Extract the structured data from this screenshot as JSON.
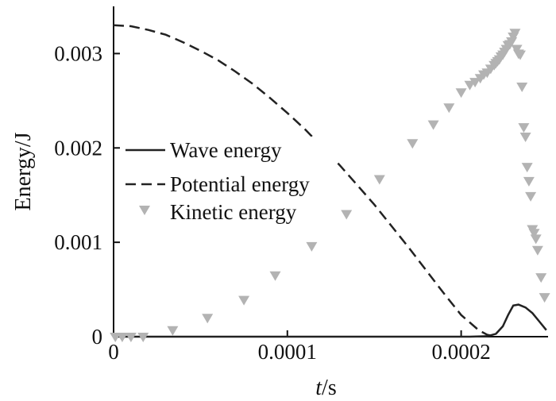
{
  "chart_data": {
    "type": "line",
    "xlabel_var": "t",
    "xlabel_unit": "/s",
    "ylabel": "Energy/J",
    "xlim": [
      0,
      0.00025
    ],
    "ylim": [
      0,
      0.0035
    ],
    "x_ticks": [
      {
        "value": 0,
        "label": "0"
      },
      {
        "value": 0.0001,
        "label": "0.0001"
      },
      {
        "value": 0.0002,
        "label": "0.0002"
      }
    ],
    "y_ticks": [
      {
        "value": 0,
        "label": "0"
      },
      {
        "value": 0.001,
        "label": "0.001"
      },
      {
        "value": 0.002,
        "label": "0.002"
      },
      {
        "value": 0.003,
        "label": "0.003"
      }
    ],
    "legend_position": "center-left",
    "series": [
      {
        "name": "Wave energy",
        "style": "solid",
        "color": "#222222",
        "x": [
          0,
          0.000205,
          0.000215,
          0.00022,
          0.000224,
          0.000227,
          0.00023,
          0.000233,
          0.000237,
          0.000241,
          0.000245,
          0.000249
        ],
        "y": [
          0,
          0,
          5e-06,
          3e-05,
          0.00011,
          0.00023,
          0.00033,
          0.00034,
          0.00031,
          0.00025,
          0.00016,
          7e-05
        ]
      },
      {
        "name": "Potential energy",
        "style": "dashed",
        "color": "#222222",
        "x": [
          0,
          1e-05,
          2e-05,
          3e-05,
          4e-05,
          5e-05,
          6e-05,
          7e-05,
          8e-05,
          9e-05,
          0.0001,
          0.00011,
          0.00012,
          0.00013,
          0.00014,
          0.00015,
          0.00016,
          0.00017,
          0.00018,
          0.00019,
          0.0002,
          0.00021,
          0.000215,
          0.00022
        ],
        "y": [
          0.0033,
          0.00329,
          0.00325,
          0.0032,
          0.00312,
          0.00303,
          0.00293,
          0.00281,
          0.00268,
          0.00253,
          0.00237,
          0.0022,
          0.00201,
          0.00182,
          0.00161,
          0.0014,
          0.00117,
          0.00094,
          0.0007,
          0.00046,
          0.00023,
          7e-05,
          2e-05,
          0.0
        ]
      },
      {
        "name": "Kinetic energy",
        "style": "markers-triangle-down",
        "color": "#b3b3b3",
        "x": [
          1e-06,
          5e-06,
          1e-05,
          1.7e-05,
          3.4e-05,
          5.4e-05,
          7.5e-05,
          9.3e-05,
          0.000114,
          0.000134,
          0.000153,
          0.000172,
          0.000184,
          0.000193,
          0.0002,
          0.000205,
          0.000208,
          0.000211,
          0.000213,
          0.000215,
          0.000217,
          0.000219,
          0.00022,
          0.000221,
          0.000222,
          0.000223,
          0.000224,
          0.000225,
          0.000226,
          0.000227,
          0.000228,
          0.000229,
          0.00023,
          0.000231,
          0.000232,
          0.000233,
          0.000234,
          0.000235,
          0.000236,
          0.000237,
          0.000238,
          0.000239,
          0.00024,
          0.000241,
          0.000242,
          0.000243,
          0.000244,
          0.000246,
          0.000248
        ],
        "y": [
          0.0,
          0.0,
          0.0,
          0.0,
          7e-05,
          0.0002,
          0.00039,
          0.00065,
          0.00096,
          0.0013,
          0.00167,
          0.00205,
          0.00225,
          0.00243,
          0.00259,
          0.00267,
          0.0027,
          0.00274,
          0.00278,
          0.0028,
          0.00284,
          0.00288,
          0.0029,
          0.00292,
          0.00294,
          0.00297,
          0.00299,
          0.00302,
          0.00305,
          0.00309,
          0.0031,
          0.00313,
          0.00318,
          0.00322,
          0.00305,
          0.003,
          0.00299,
          0.00265,
          0.00222,
          0.00212,
          0.0018,
          0.00165,
          0.00149,
          0.00114,
          0.0011,
          0.00104,
          0.00092,
          0.00063,
          0.00042
        ]
      }
    ]
  }
}
